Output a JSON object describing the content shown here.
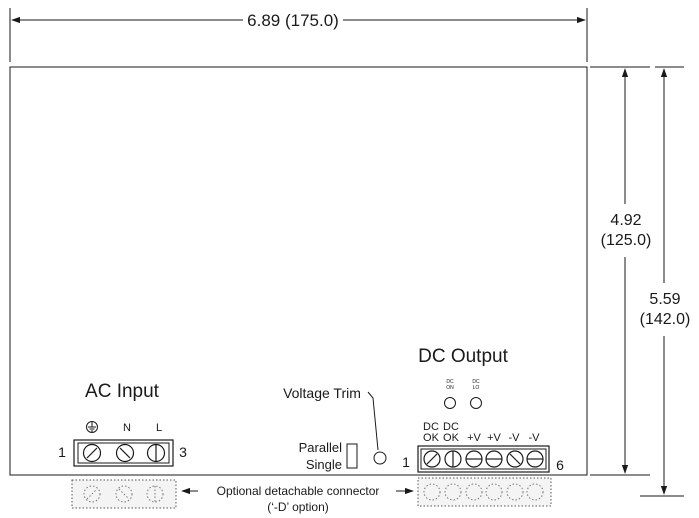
{
  "dimensions": {
    "width": "6.89 (175.0)",
    "height_inner": [
      "4.92",
      "(125.0)"
    ],
    "height_outer": [
      "5.59",
      "(142.0)"
    ]
  },
  "ac_input": {
    "title": "AC Input",
    "terminals": [
      "⏚",
      "N",
      "L"
    ],
    "pin_first": "1",
    "pin_last": "3"
  },
  "voltage_trim": {
    "label": "Voltage Trim"
  },
  "mode_switch": {
    "parallel": "Parallel",
    "single": "Single"
  },
  "dc_output": {
    "title": "DC Output",
    "leds": [
      [
        "DC",
        "ON"
      ],
      [
        "DC",
        "LO"
      ]
    ],
    "terminals_top": [
      "DC",
      "DC",
      "",
      "",
      "",
      ""
    ],
    "terminals_bottom": [
      "OK",
      "OK",
      "+V",
      "+V",
      "-V",
      "-V"
    ],
    "pin_first": "1",
    "pin_last": "6"
  },
  "connector_note": {
    "line1": "Optional detachable connector",
    "line2": "(‘-D’ option)"
  },
  "colors": {
    "line": "#1a1a1a",
    "background": "#ffffff"
  }
}
